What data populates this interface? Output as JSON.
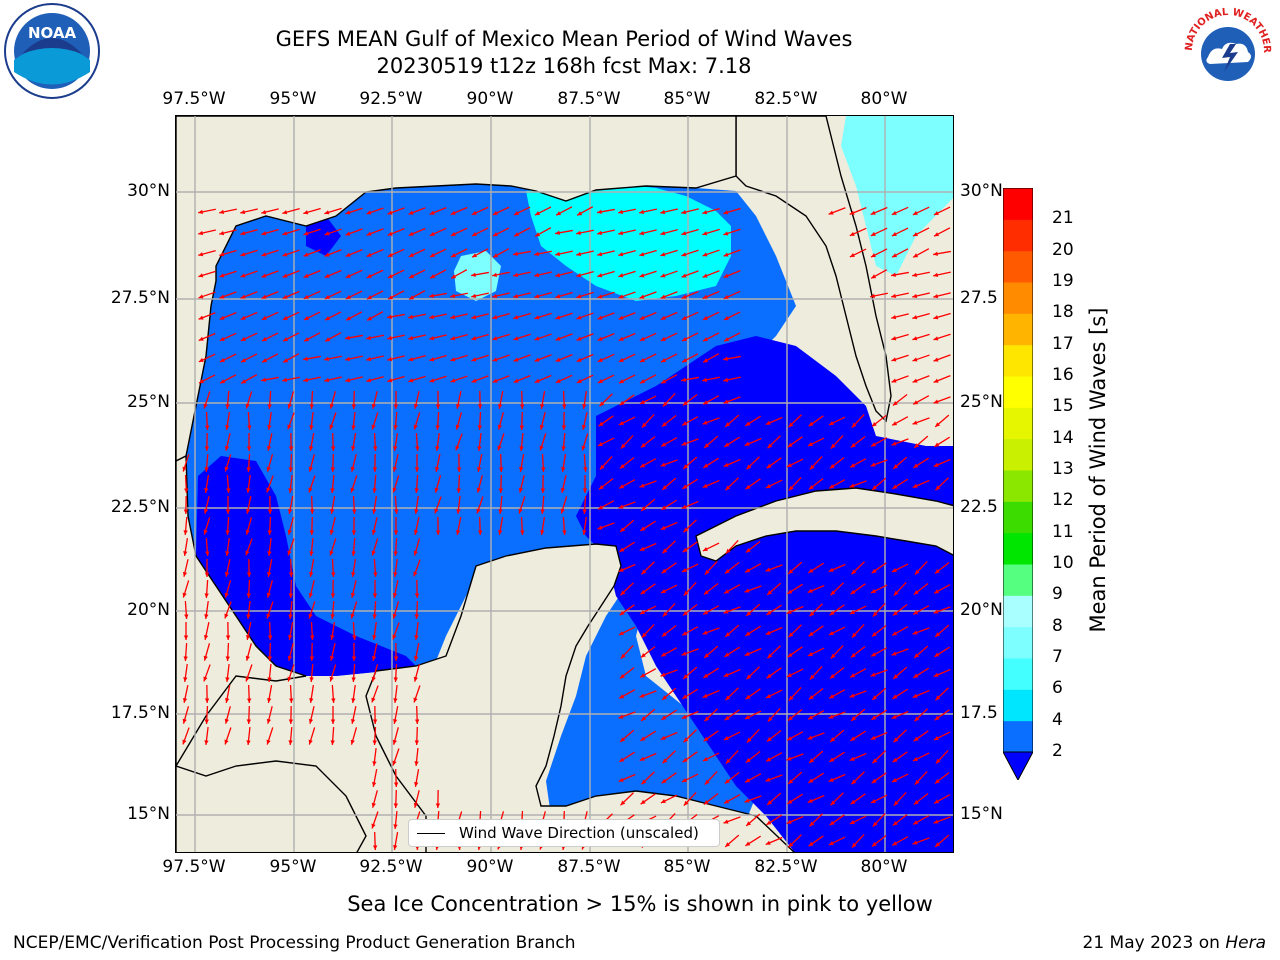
{
  "header": {
    "title_line1": "GEFS MEAN Gulf of Mexico Mean Period of Wind Waves",
    "title_line2": "20230519 t12z 168h fcst   Max: 7.18"
  },
  "map": {
    "lon_ticks": [
      "97.5°W",
      "95°W",
      "92.5°W",
      "90°W",
      "87.5°W",
      "85°W",
      "82.5°W",
      "80°W"
    ],
    "lat_ticks_left": [
      "30°N",
      "27.5°N",
      "25°N",
      "22.5°N",
      "20°N",
      "17.5°N",
      "15°N"
    ],
    "lat_ticks_right": [
      "30°N",
      "27.5",
      "25°N",
      "22.5",
      "20°N",
      "17.5",
      "15°N"
    ],
    "legend_label": "Wind Wave Direction (unscaled)",
    "land_color": "#eeecdc",
    "arrow_color": "#ff0000"
  },
  "colorbar": {
    "title": "Mean Period of Wind Waves [s]",
    "labels": [
      "2",
      "4",
      "6",
      "7",
      "8",
      "9",
      "10",
      "11",
      "12",
      "13",
      "14",
      "15",
      "16",
      "17",
      "18",
      "19",
      "20",
      "21"
    ],
    "colors": [
      "#0a6eff",
      "#00e6ff",
      "#44ffff",
      "#7dffff",
      "#a9ffff",
      "#55ff80",
      "#00e600",
      "#3cdc00",
      "#8be600",
      "#c8f000",
      "#e6f500",
      "#ffff00",
      "#ffe600",
      "#ffb400",
      "#ff8c00",
      "#ff5a00",
      "#ff2d00",
      "#ff0000"
    ],
    "under_color": "#0000ff"
  },
  "caption": "Sea Ice Concentration > 15% is shown in pink to yellow",
  "footer": {
    "left": "NCEP/EMC/Verification Post Processing Product Generation Branch",
    "right_prefix": "21 May 2023 on ",
    "right_italic": "Hera"
  },
  "logos": {
    "noaa_text": "NOAA",
    "nws_text": "NATIONAL WEATHER SERVICE"
  }
}
